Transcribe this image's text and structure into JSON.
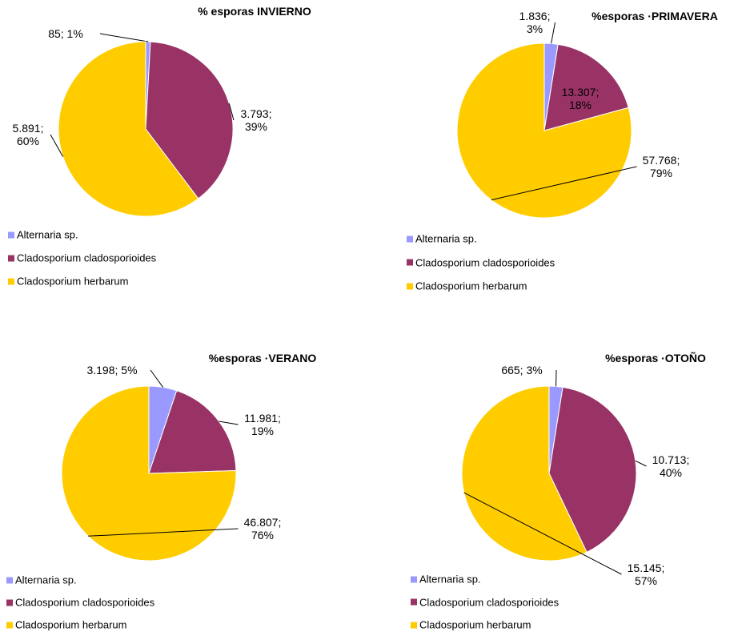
{
  "chart_data": [
    {
      "type": "pie",
      "title": "% esporas INVIERNO",
      "categories": [
        "Alternaria sp.",
        "Cladosporium cladosporioides",
        "Cladosporium herbarum"
      ],
      "values": [
        85,
        3793,
        5891
      ],
      "value_labels": [
        "85; 1%",
        "3.793; 39%",
        "5.891; 60%"
      ],
      "colors": [
        "#9999ff",
        "#993366",
        "#ffcc00"
      ],
      "legend": "bottom-left"
    },
    {
      "type": "pie",
      "title": "%esporas ·PRIMAVERA",
      "categories": [
        "Alternaria sp.",
        "Cladosporium cladosporioides",
        "Cladosporium herbarum"
      ],
      "values": [
        1836,
        13307,
        57768
      ],
      "value_labels": [
        "1.836; 3%",
        "13.307; 18%",
        "57.768; 79%"
      ],
      "colors": [
        "#9999ff",
        "#993366",
        "#ffcc00"
      ],
      "legend": "bottom-left"
    },
    {
      "type": "pie",
      "title": "%esporas ·VERANO",
      "categories": [
        "Alternaria sp.",
        "Cladosporium cladosporioides",
        "Cladosporium herbarum"
      ],
      "values": [
        3198,
        11981,
        46807
      ],
      "value_labels": [
        "3.198; 5%",
        "11.981; 19%",
        "46.807; 76%"
      ],
      "colors": [
        "#9999ff",
        "#993366",
        "#ffcc00"
      ],
      "legend": "bottom-left"
    },
    {
      "type": "pie",
      "title": "%esporas ·OTOÑO",
      "categories": [
        "Alternaria sp.",
        "Cladosporium cladosporioides",
        "Cladosporium herbarum"
      ],
      "values": [
        665,
        10713,
        15145
      ],
      "value_labels": [
        "665; 3%",
        "10.713; 40%",
        "15.145; 57%"
      ],
      "colors": [
        "#9999ff",
        "#993366",
        "#ffcc00"
      ],
      "legend": "bottom-left"
    }
  ]
}
